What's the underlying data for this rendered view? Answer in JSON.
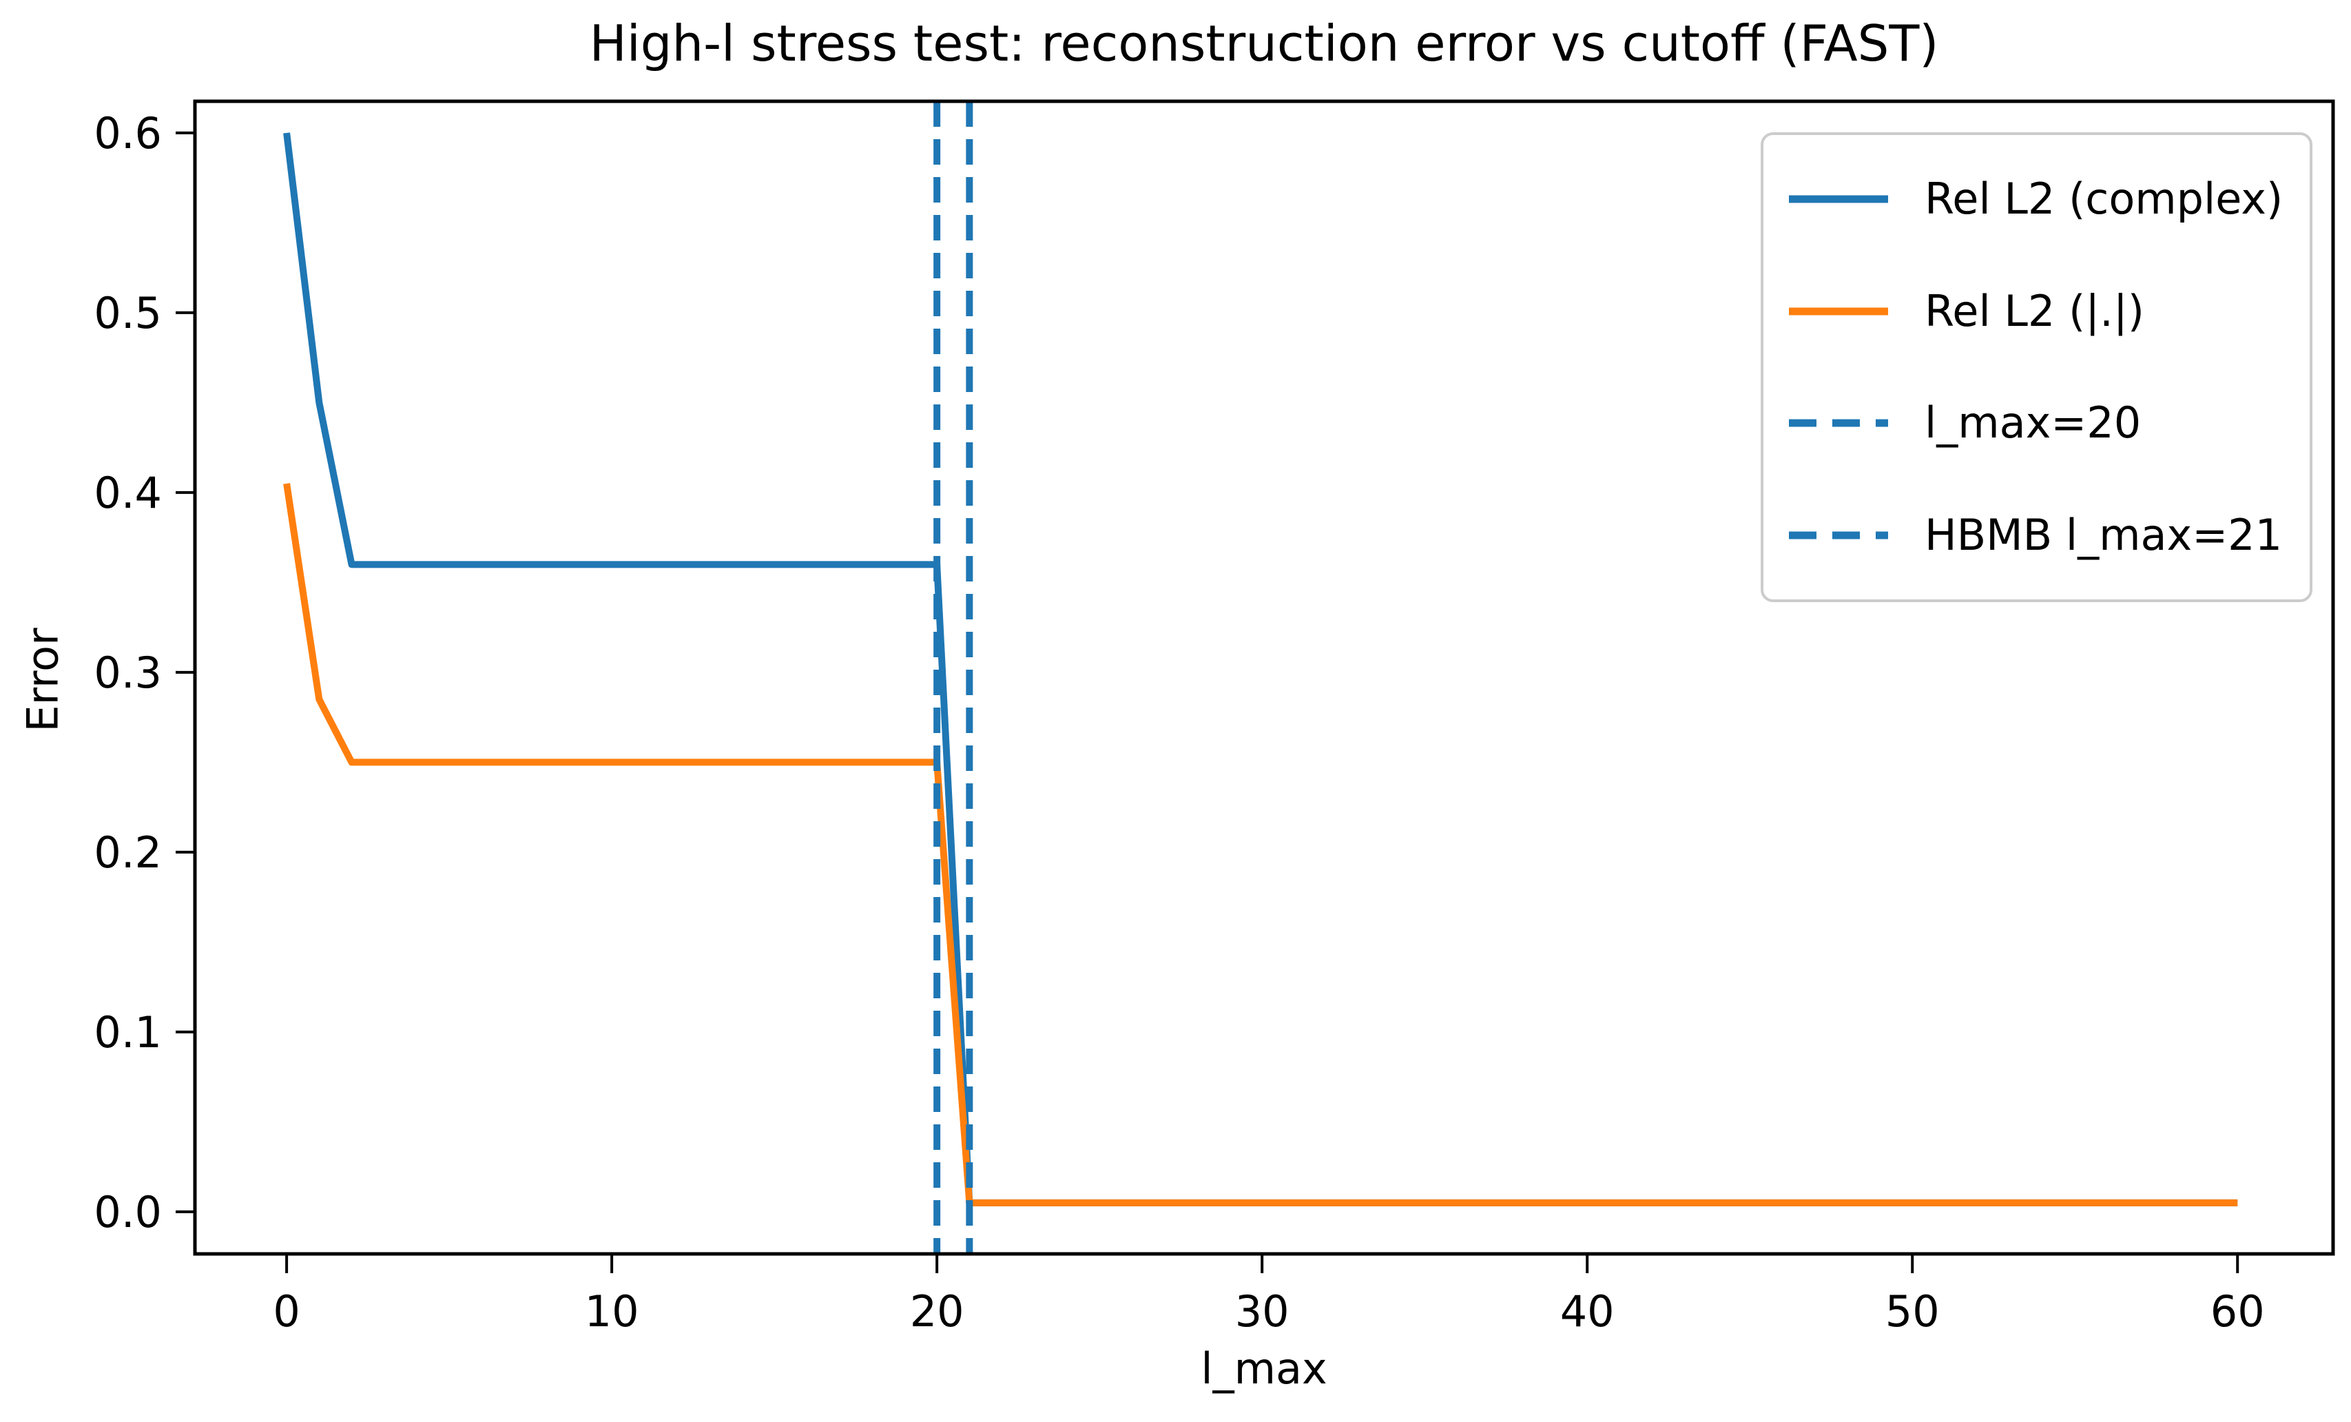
{
  "chart_data": {
    "type": "line",
    "title": "High-l stress test: reconstruction error vs cutoff (FAST)",
    "xlabel": "l_max",
    "ylabel": "Error",
    "xlim": [
      -2.82,
      62.94
    ],
    "ylim": [
      -0.0234,
      0.6176
    ],
    "grid": false,
    "legend_position": "upper right",
    "x_ticks": [
      0,
      10,
      20,
      30,
      40,
      50,
      60
    ],
    "x_tick_labels": [
      "0",
      "10",
      "20",
      "30",
      "40",
      "50",
      "60"
    ],
    "y_ticks": [
      0.0,
      0.1,
      0.2,
      0.3,
      0.4,
      0.5,
      0.6
    ],
    "y_tick_labels": [
      "0.0",
      "0.1",
      "0.2",
      "0.3",
      "0.4",
      "0.5",
      "0.6"
    ],
    "series": [
      {
        "name": "Rel L2 (complex)",
        "color": "#1f77b4",
        "style": "solid",
        "x": [
          0,
          1,
          2,
          20,
          21,
          60
        ],
        "y": [
          0.6,
          0.45,
          0.36,
          0.36,
          0.005,
          0.005
        ]
      },
      {
        "name": "Rel L2 (|.|)",
        "color": "#ff7f0e",
        "style": "solid",
        "x": [
          0,
          1,
          2,
          20,
          21,
          60
        ],
        "y": [
          0.405,
          0.285,
          0.25,
          0.25,
          0.005,
          0.005
        ]
      }
    ],
    "vlines": [
      {
        "name": "l_max=20",
        "x": 20,
        "color": "#1f77b4",
        "style": "dashed"
      },
      {
        "name": "HBMB l_max=21",
        "x": 21,
        "color": "#1f77b4",
        "style": "dashed"
      }
    ],
    "legend": [
      {
        "label": "Rel L2 (complex)",
        "color": "#1f77b4",
        "dash": false
      },
      {
        "label": "Rel L2 (|.|)",
        "color": "#ff7f0e",
        "dash": false
      },
      {
        "label": "l_max=20",
        "color": "#1f77b4",
        "dash": true
      },
      {
        "label": "HBMB l_max=21",
        "color": "#1f77b4",
        "dash": true
      }
    ],
    "axis_color": "#000000",
    "background_color": "#ffffff"
  }
}
